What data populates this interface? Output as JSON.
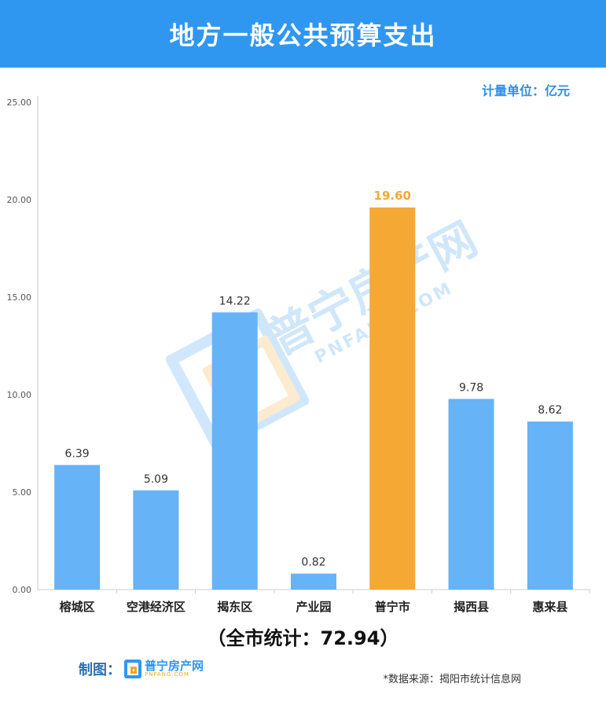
{
  "header": {
    "title": "地方一般公共预算支出"
  },
  "unit_label": "计量单位：亿元",
  "watermark": {
    "text": "普宁房产网",
    "sub": "PNFANG.COM"
  },
  "chart_data": {
    "type": "bar",
    "categories": [
      "榕城区",
      "空港经济区",
      "揭东区",
      "产业园",
      "普宁市",
      "揭西县",
      "惠来县"
    ],
    "values": [
      6.39,
      5.09,
      14.22,
      0.82,
      19.6,
      9.78,
      8.62
    ],
    "value_labels": [
      "6.39",
      "5.09",
      "14.22",
      "0.82",
      "19.60",
      "9.78",
      "8.62"
    ],
    "ylim": [
      0,
      25
    ],
    "yticks": [
      0,
      5,
      10,
      15,
      20,
      25
    ],
    "ytick_labels": [
      "0.00",
      "5.00",
      "10.00",
      "15.00",
      "20.00",
      "25.00"
    ],
    "highlight_index": 4,
    "colors": {
      "bar": "#66b3f7",
      "highlight": "#f5a833",
      "highlight_label": "#f5a833",
      "label": "#333333",
      "axis": "#cccccc"
    },
    "grid": false,
    "legend": "none"
  },
  "total_label": "（全市统计：72.94）",
  "footer": {
    "made_by": "制图：",
    "logo_text": "普宁房产网",
    "logo_sub": "PNFANG.COM",
    "source": "*数据来源：揭阳市统计信息网"
  }
}
